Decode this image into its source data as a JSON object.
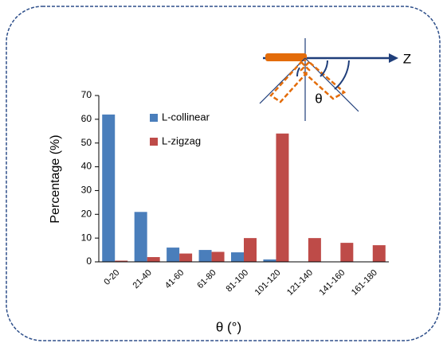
{
  "chart_data": {
    "type": "bar",
    "categories": [
      "0-20",
      "21-40",
      "41-60",
      "61-80",
      "81-100",
      "101-120",
      "121-140",
      "141-160",
      "161-180"
    ],
    "series": [
      {
        "name": "L-collinear",
        "color": "#4a7ebb",
        "values": [
          62,
          21,
          6,
          5,
          4,
          1,
          0,
          0,
          0
        ]
      },
      {
        "name": "L-zigzag",
        "color": "#be4b48",
        "values": [
          0.5,
          2,
          3.5,
          4.2,
          10,
          54,
          10,
          8,
          7
        ]
      }
    ],
    "ylim": [
      0,
      70
    ],
    "yticks": [
      0,
      10,
      20,
      30,
      40,
      50,
      60,
      70
    ],
    "grid": false,
    "y_label": "Percentage (%)",
    "x_label": "θ (°)",
    "annotations": [
      "Z",
      "θ"
    ]
  }
}
